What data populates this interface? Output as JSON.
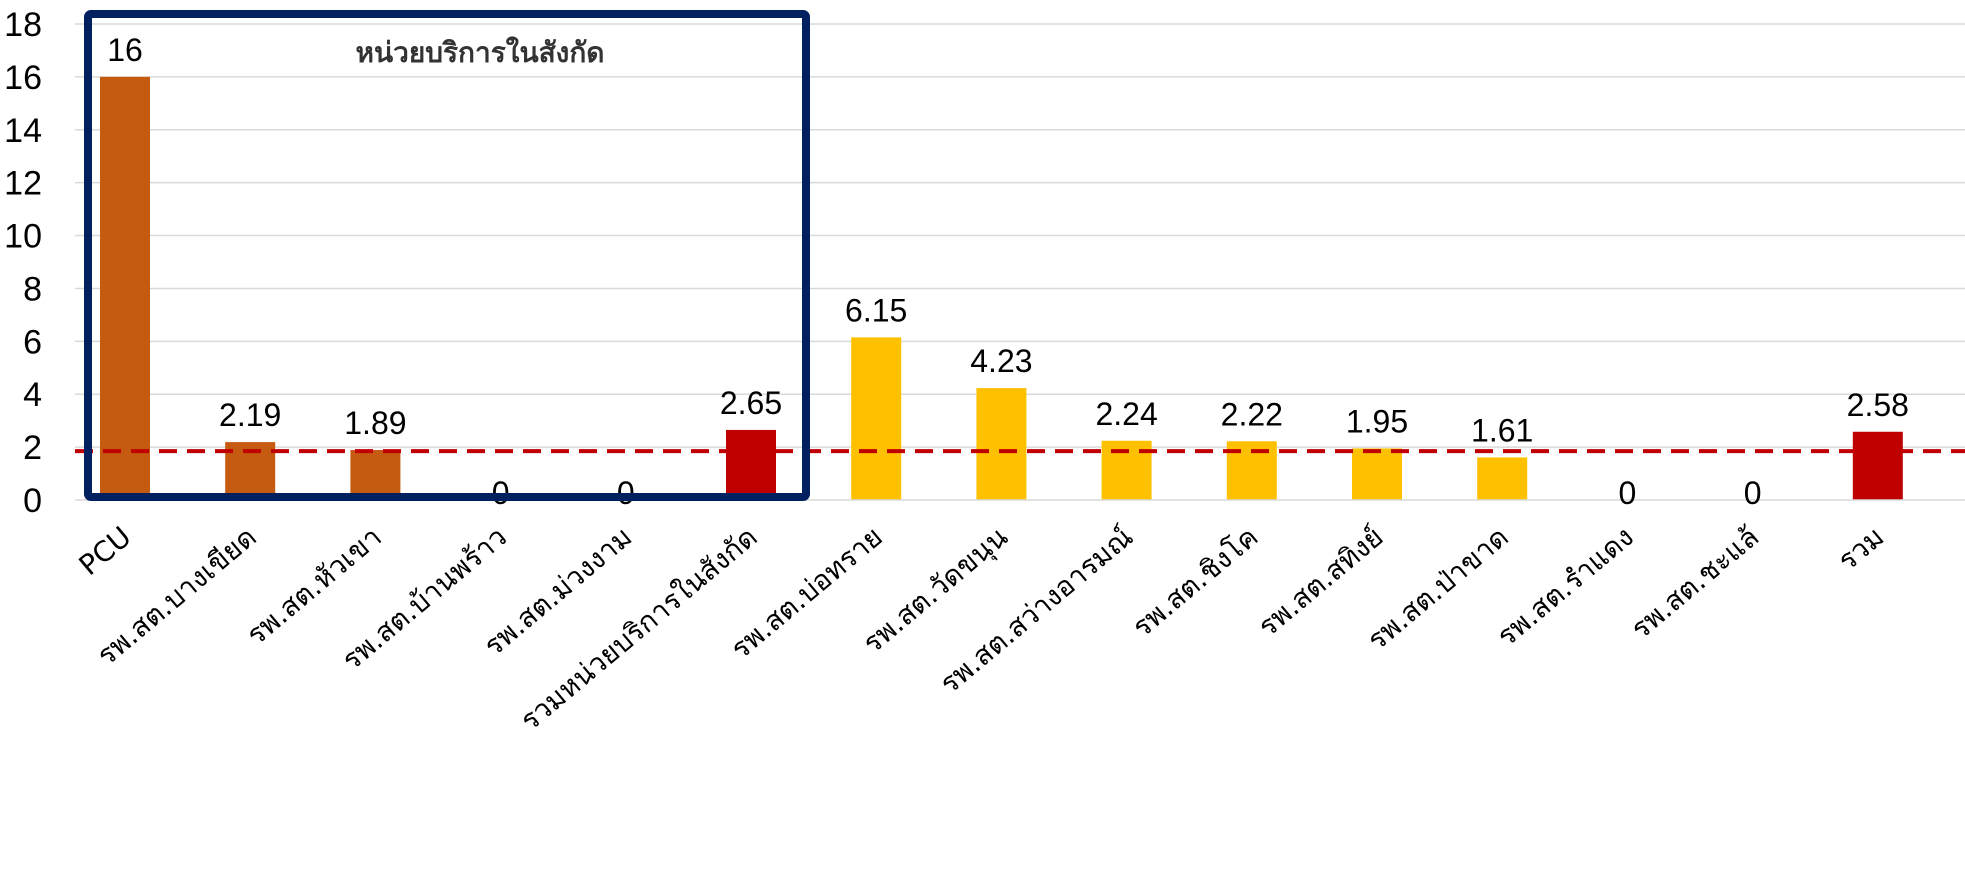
{
  "chart_data": {
    "type": "bar",
    "categories": [
      "PCU",
      "รพ.สต.บางเขียด",
      "รพ.สต.หัวเขา",
      "รพ.สต.บ้านพร้าว",
      "รพ.สต.ม่วงงาม",
      "รวมหน่วยบริการในสังกัด",
      "รพ.สต.บ่อทราย",
      "รพ.สต.วัดขนุน",
      "รพ.สต.สว่างอารมณ์",
      "รพ.สต.ชิงโค",
      "รพ.สต.สทิงย์",
      "รพ.สต.ป่าขาด",
      "รพ.สต.รำแดง",
      "รพ.สต.ชะแล้",
      "รวม"
    ],
    "values": [
      16,
      2.19,
      1.89,
      0,
      0,
      2.65,
      6.15,
      4.23,
      2.24,
      2.22,
      1.95,
      1.61,
      0,
      0,
      2.58
    ],
    "value_labels": [
      "16",
      "2.19",
      "1.89",
      "0",
      "0",
      "2.65",
      "6.15",
      "4.23",
      "2.24",
      "2.22",
      "1.95",
      "1.61",
      "0",
      "0",
      "2.58"
    ],
    "bar_colors": [
      "#C55A11",
      "#C55A11",
      "#C55A11",
      "#C55A11",
      "#C55A11",
      "#C00000",
      "#FFC000",
      "#FFC000",
      "#FFC000",
      "#FFC000",
      "#FFC000",
      "#FFC000",
      "#FFC000",
      "#FFC000",
      "#C00000"
    ],
    "ylim": [
      0,
      18
    ],
    "yticks": [
      "0",
      "2",
      "4",
      "6",
      "8",
      "10",
      "12",
      "14",
      "16",
      "18"
    ],
    "grid": true,
    "reference_line": {
      "value": 1.85,
      "color": "#C00000",
      "style": "dashed"
    },
    "highlight_box": {
      "label": "หน่วยบริการในสังกัด",
      "color": "#002060",
      "covers_categories": [
        0,
        5
      ]
    }
  }
}
